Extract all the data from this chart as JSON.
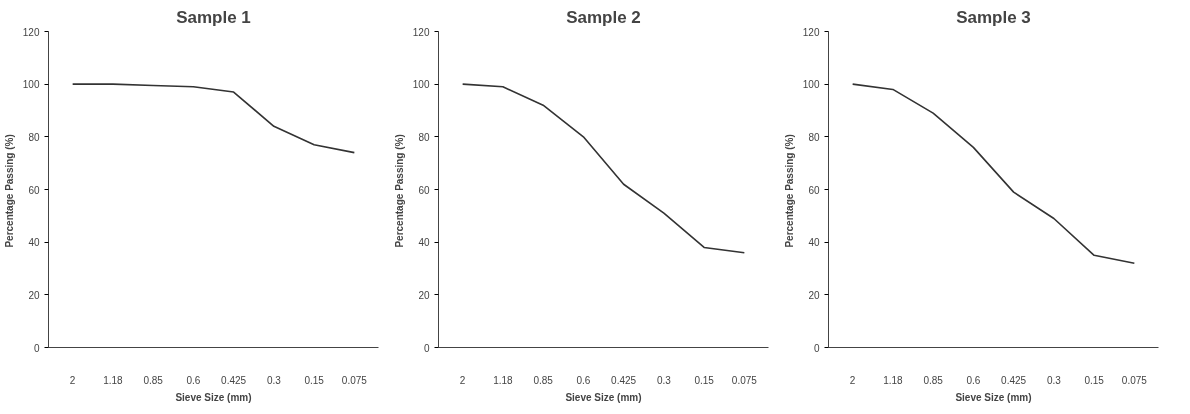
{
  "chart_data": [
    {
      "type": "line",
      "title": "Sample 1",
      "xlabel": "Sieve Size (mm)",
      "ylabel": "Percentage Passing  (%)",
      "categories": [
        "2",
        "1.18",
        "0.85",
        "0.6",
        "0.425",
        "0.3",
        "0.15",
        "0.075"
      ],
      "series": [
        {
          "color": "#333333",
          "values": [
            100,
            100,
            99.5,
            99,
            97,
            84,
            77,
            74
          ]
        }
      ],
      "ylim": [
        0,
        120
      ],
      "yticks": [
        0,
        20,
        40,
        60,
        80,
        100,
        120
      ],
      "grid": false,
      "marker": "none",
      "line_style": "solid"
    },
    {
      "type": "line",
      "title": "Sample 2",
      "xlabel": "Sieve Size (mm)",
      "ylabel": "Percentage Passing  (%)",
      "categories": [
        "2",
        "1.18",
        "0.85",
        "0.6",
        "0.425",
        "0.3",
        "0.15",
        "0.075"
      ],
      "series": [
        {
          "color": "#333333",
          "values": [
            100,
            99,
            92,
            80,
            62,
            51,
            38,
            36
          ]
        }
      ],
      "ylim": [
        0,
        120
      ],
      "yticks": [
        0,
        20,
        40,
        60,
        80,
        100,
        120
      ],
      "grid": false,
      "marker": "none",
      "line_style": "solid"
    },
    {
      "type": "line",
      "title": "Sample 3",
      "xlabel": "Sieve Size (mm)",
      "ylabel": "Percentage Passing  (%)",
      "categories": [
        "2",
        "1.18",
        "0.85",
        "0.6",
        "0.425",
        "0.3",
        "0.15",
        "0.075"
      ],
      "series": [
        {
          "color": "#333333",
          "values": [
            100,
            98,
            89,
            76,
            59,
            49,
            35,
            32
          ]
        }
      ],
      "ylim": [
        0,
        120
      ],
      "yticks": [
        0,
        20,
        40,
        60,
        80,
        100,
        120
      ],
      "grid": false,
      "marker": "none",
      "line_style": "solid"
    }
  ]
}
